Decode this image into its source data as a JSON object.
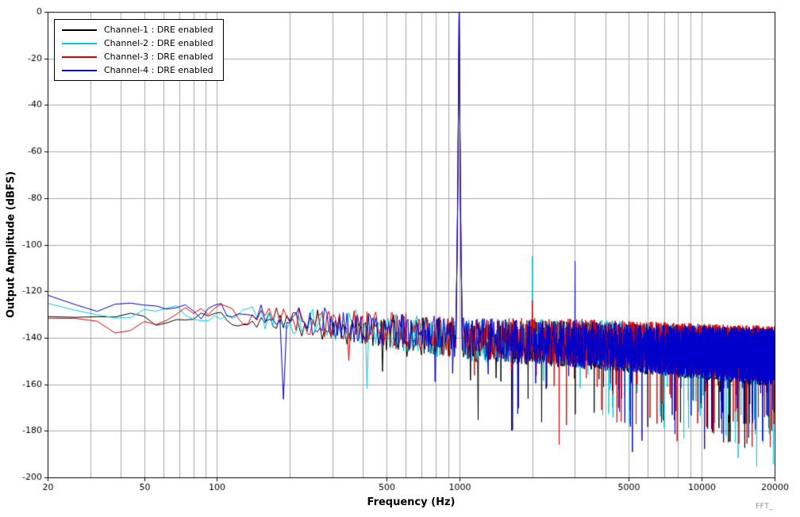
{
  "chart_data": {
    "type": "line",
    "title": "",
    "xlabel": "Frequency (Hz)",
    "ylabel": "Output Amplitude (dBFS)",
    "x_scale": "log",
    "xlim": [
      20,
      20000
    ],
    "ylim": [
      -200,
      0
    ],
    "x_ticks": [
      20,
      50,
      100,
      500,
      1000,
      5000,
      10000,
      20000
    ],
    "x_gridlines": [
      20,
      30,
      40,
      50,
      60,
      70,
      80,
      90,
      100,
      200,
      300,
      400,
      500,
      600,
      700,
      800,
      900,
      1000,
      2000,
      3000,
      4000,
      5000,
      6000,
      7000,
      8000,
      9000,
      10000,
      20000
    ],
    "y_ticks": [
      0,
      -20,
      -40,
      -60,
      -80,
      -100,
      -120,
      -140,
      -160,
      -180,
      -200
    ],
    "grid": true,
    "legend_position": "top-left",
    "watermark": "FFT_",
    "fundamental_hz": 1000,
    "fundamental_dbfs": 0,
    "bin_hz": 6,
    "series": [
      {
        "name": "Channel-1 : DRE enabled",
        "color": "#000000",
        "seed": 11,
        "noise_floor": [
          [
            20,
            -131
          ],
          [
            60,
            -133
          ],
          [
            100,
            -131
          ],
          [
            300,
            -135
          ],
          [
            1000,
            -141
          ],
          [
            3000,
            -143
          ],
          [
            20000,
            -149
          ]
        ],
        "spurs": []
      },
      {
        "name": "Channel-2 : DRE enabled",
        "color": "#00ccdd",
        "seed": 22,
        "noise_floor": [
          [
            20,
            -126
          ],
          [
            50,
            -129
          ],
          [
            100,
            -128
          ],
          [
            300,
            -134
          ],
          [
            1000,
            -141
          ],
          [
            3000,
            -142
          ],
          [
            20000,
            -148
          ]
        ],
        "spurs": [
          [
            2000,
            -105
          ]
        ]
      },
      {
        "name": "Channel-3 : DRE enabled",
        "color": "#dd0000",
        "seed": 33,
        "noise_floor": [
          [
            20,
            -132
          ],
          [
            40,
            -136
          ],
          [
            100,
            -129
          ],
          [
            300,
            -134
          ],
          [
            1000,
            -140
          ],
          [
            3000,
            -142
          ],
          [
            20000,
            -147
          ]
        ],
        "spurs": [
          [
            2000,
            -124
          ]
        ]
      },
      {
        "name": "Channel-4 : DRE enabled",
        "color": "#0000cc",
        "seed": 44,
        "noise_floor": [
          [
            20,
            -124
          ],
          [
            60,
            -127
          ],
          [
            100,
            -129
          ],
          [
            300,
            -134
          ],
          [
            1000,
            -140
          ],
          [
            3000,
            -143
          ],
          [
            20000,
            -148
          ]
        ],
        "spurs": [
          [
            3000,
            -107
          ]
        ]
      }
    ]
  }
}
